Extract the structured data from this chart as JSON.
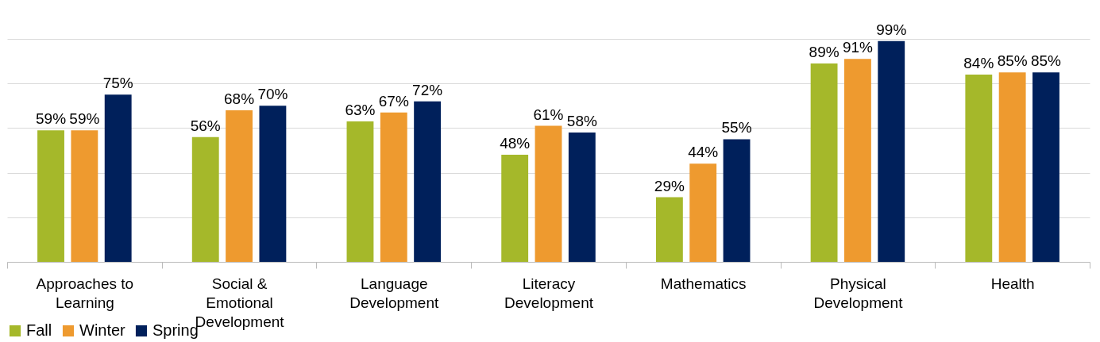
{
  "chart_data": {
    "type": "bar",
    "categories": [
      "Approaches to Learning",
      "Social & Emotional Development",
      "Language Development",
      "Literacy Development",
      "Mathematics",
      "Physical Development",
      "Health"
    ],
    "series": [
      {
        "name": "Fall",
        "color": "#a5b82a",
        "values": [
          59,
          56,
          63,
          48,
          29,
          89,
          84
        ],
        "value_labels": [
          "59%",
          "56%",
          "63%",
          "48%",
          "29%",
          "89%",
          "84%"
        ]
      },
      {
        "name": "Winter",
        "color": "#ee9a2f",
        "values": [
          59,
          68,
          67,
          61,
          44,
          91,
          85
        ],
        "value_labels": [
          "59%",
          "68%",
          "67%",
          "61%",
          "44%",
          "91%",
          "85%"
        ]
      },
      {
        "name": "Spring",
        "color": "#00205b",
        "values": [
          75,
          70,
          72,
          58,
          55,
          99,
          85
        ],
        "value_labels": [
          "75%",
          "70%",
          "72%",
          "58%",
          "55%",
          "99%",
          "85%"
        ]
      }
    ],
    "tick_labels": "x",
    "grid": "y",
    "legend": "bottom"
  }
}
